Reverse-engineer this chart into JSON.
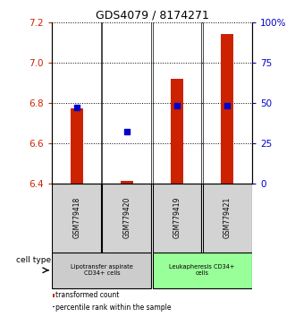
{
  "title": "GDS4079 / 8174271",
  "samples": [
    "GSM779418",
    "GSM779420",
    "GSM779419",
    "GSM779421"
  ],
  "transformed_counts": [
    6.77,
    6.41,
    6.92,
    7.14
  ],
  "percentile_ranks": [
    47,
    32,
    48,
    48
  ],
  "ylim_left": [
    6.4,
    7.2
  ],
  "yticks_left": [
    6.4,
    6.6,
    6.8,
    7.0,
    7.2
  ],
  "ylim_right": [
    0,
    100
  ],
  "yticks_right": [
    0,
    25,
    50,
    75,
    100
  ],
  "ytick_labels_right": [
    "0",
    "25",
    "50",
    "75",
    "100%"
  ],
  "bar_color": "#cc2200",
  "dot_color": "#0000cc",
  "bar_bottom": 6.4,
  "dot_size": 18,
  "gridline_color": "black",
  "cell_types": [
    {
      "label": "Lipotransfer aspirate\nCD34+ cells",
      "samples": [
        0,
        1
      ],
      "color": "#cccccc"
    },
    {
      "label": "Leukapheresis CD34+\ncells",
      "samples": [
        2,
        3
      ],
      "color": "#99ff99"
    }
  ],
  "cell_type_label": "cell type",
  "legend_bar_label": "transformed count",
  "legend_dot_label": "percentile rank within the sample",
  "title_fontsize": 9,
  "tick_fontsize": 7.5,
  "left_tick_color": "#cc2200",
  "right_tick_color": "#0000cc",
  "bar_width": 0.25
}
